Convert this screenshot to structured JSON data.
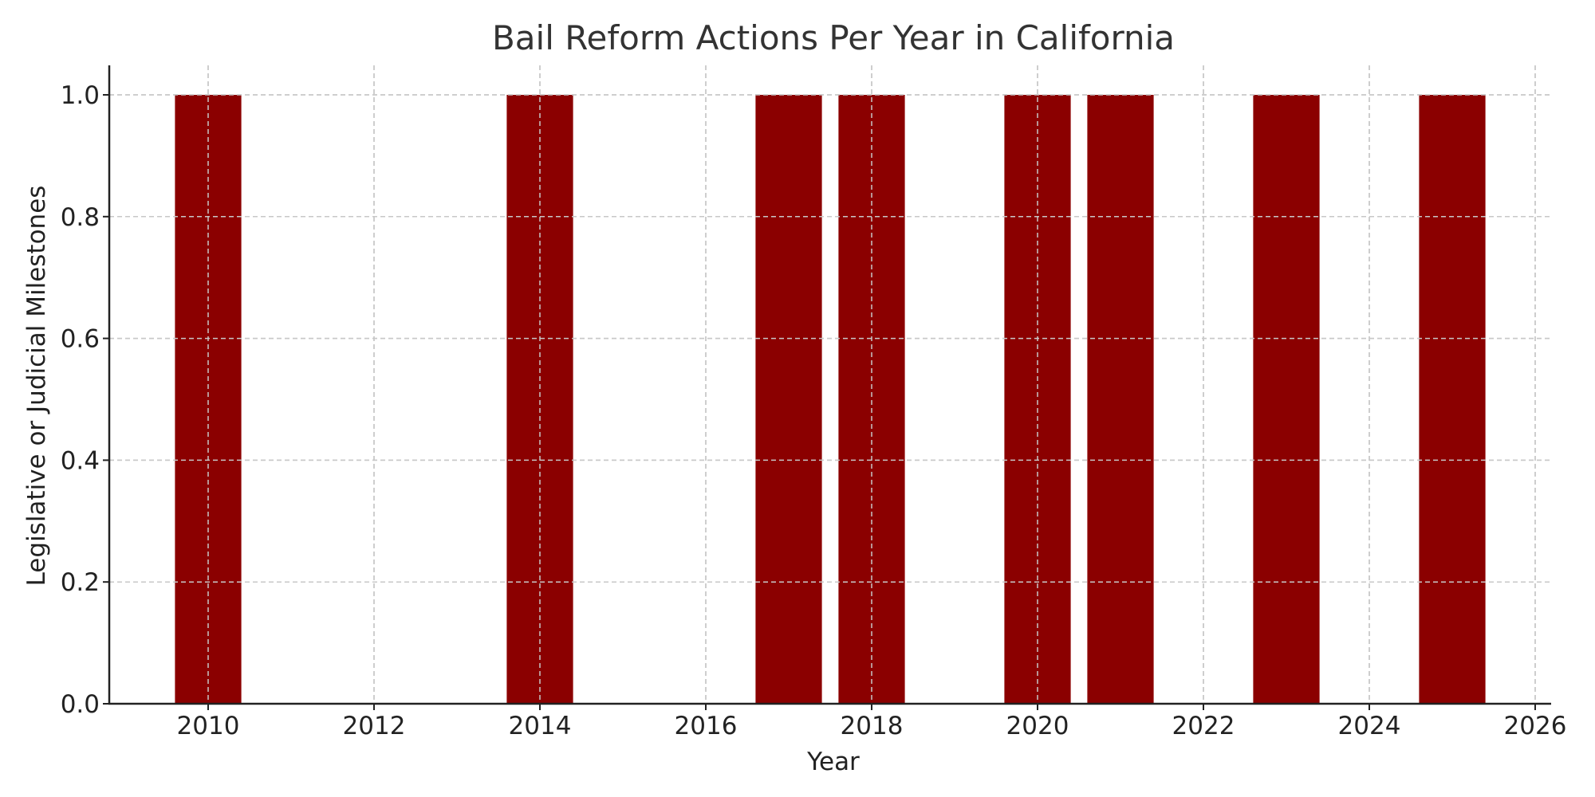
{
  "chart_data": {
    "type": "bar",
    "title": "Bail Reform Actions Per Year in California",
    "xlabel": "Year",
    "ylabel": "Legislative or Judicial Milestones",
    "categories": [
      2010,
      2014,
      2017,
      2018,
      2020,
      2021,
      2023,
      2025
    ],
    "values": [
      1,
      1,
      1,
      1,
      1,
      1,
      1,
      1
    ],
    "xticks": [
      "2010",
      "2012",
      "2014",
      "2016",
      "2018",
      "2020",
      "2022",
      "2024",
      "2026"
    ],
    "yticks": [
      "0.0",
      "0.2",
      "0.4",
      "0.6",
      "0.8",
      "1.0"
    ],
    "xlim": [
      2008.8,
      2026.2
    ],
    "ylim": [
      0,
      1.05
    ],
    "grid": true,
    "bar_color": "#8B0000"
  }
}
